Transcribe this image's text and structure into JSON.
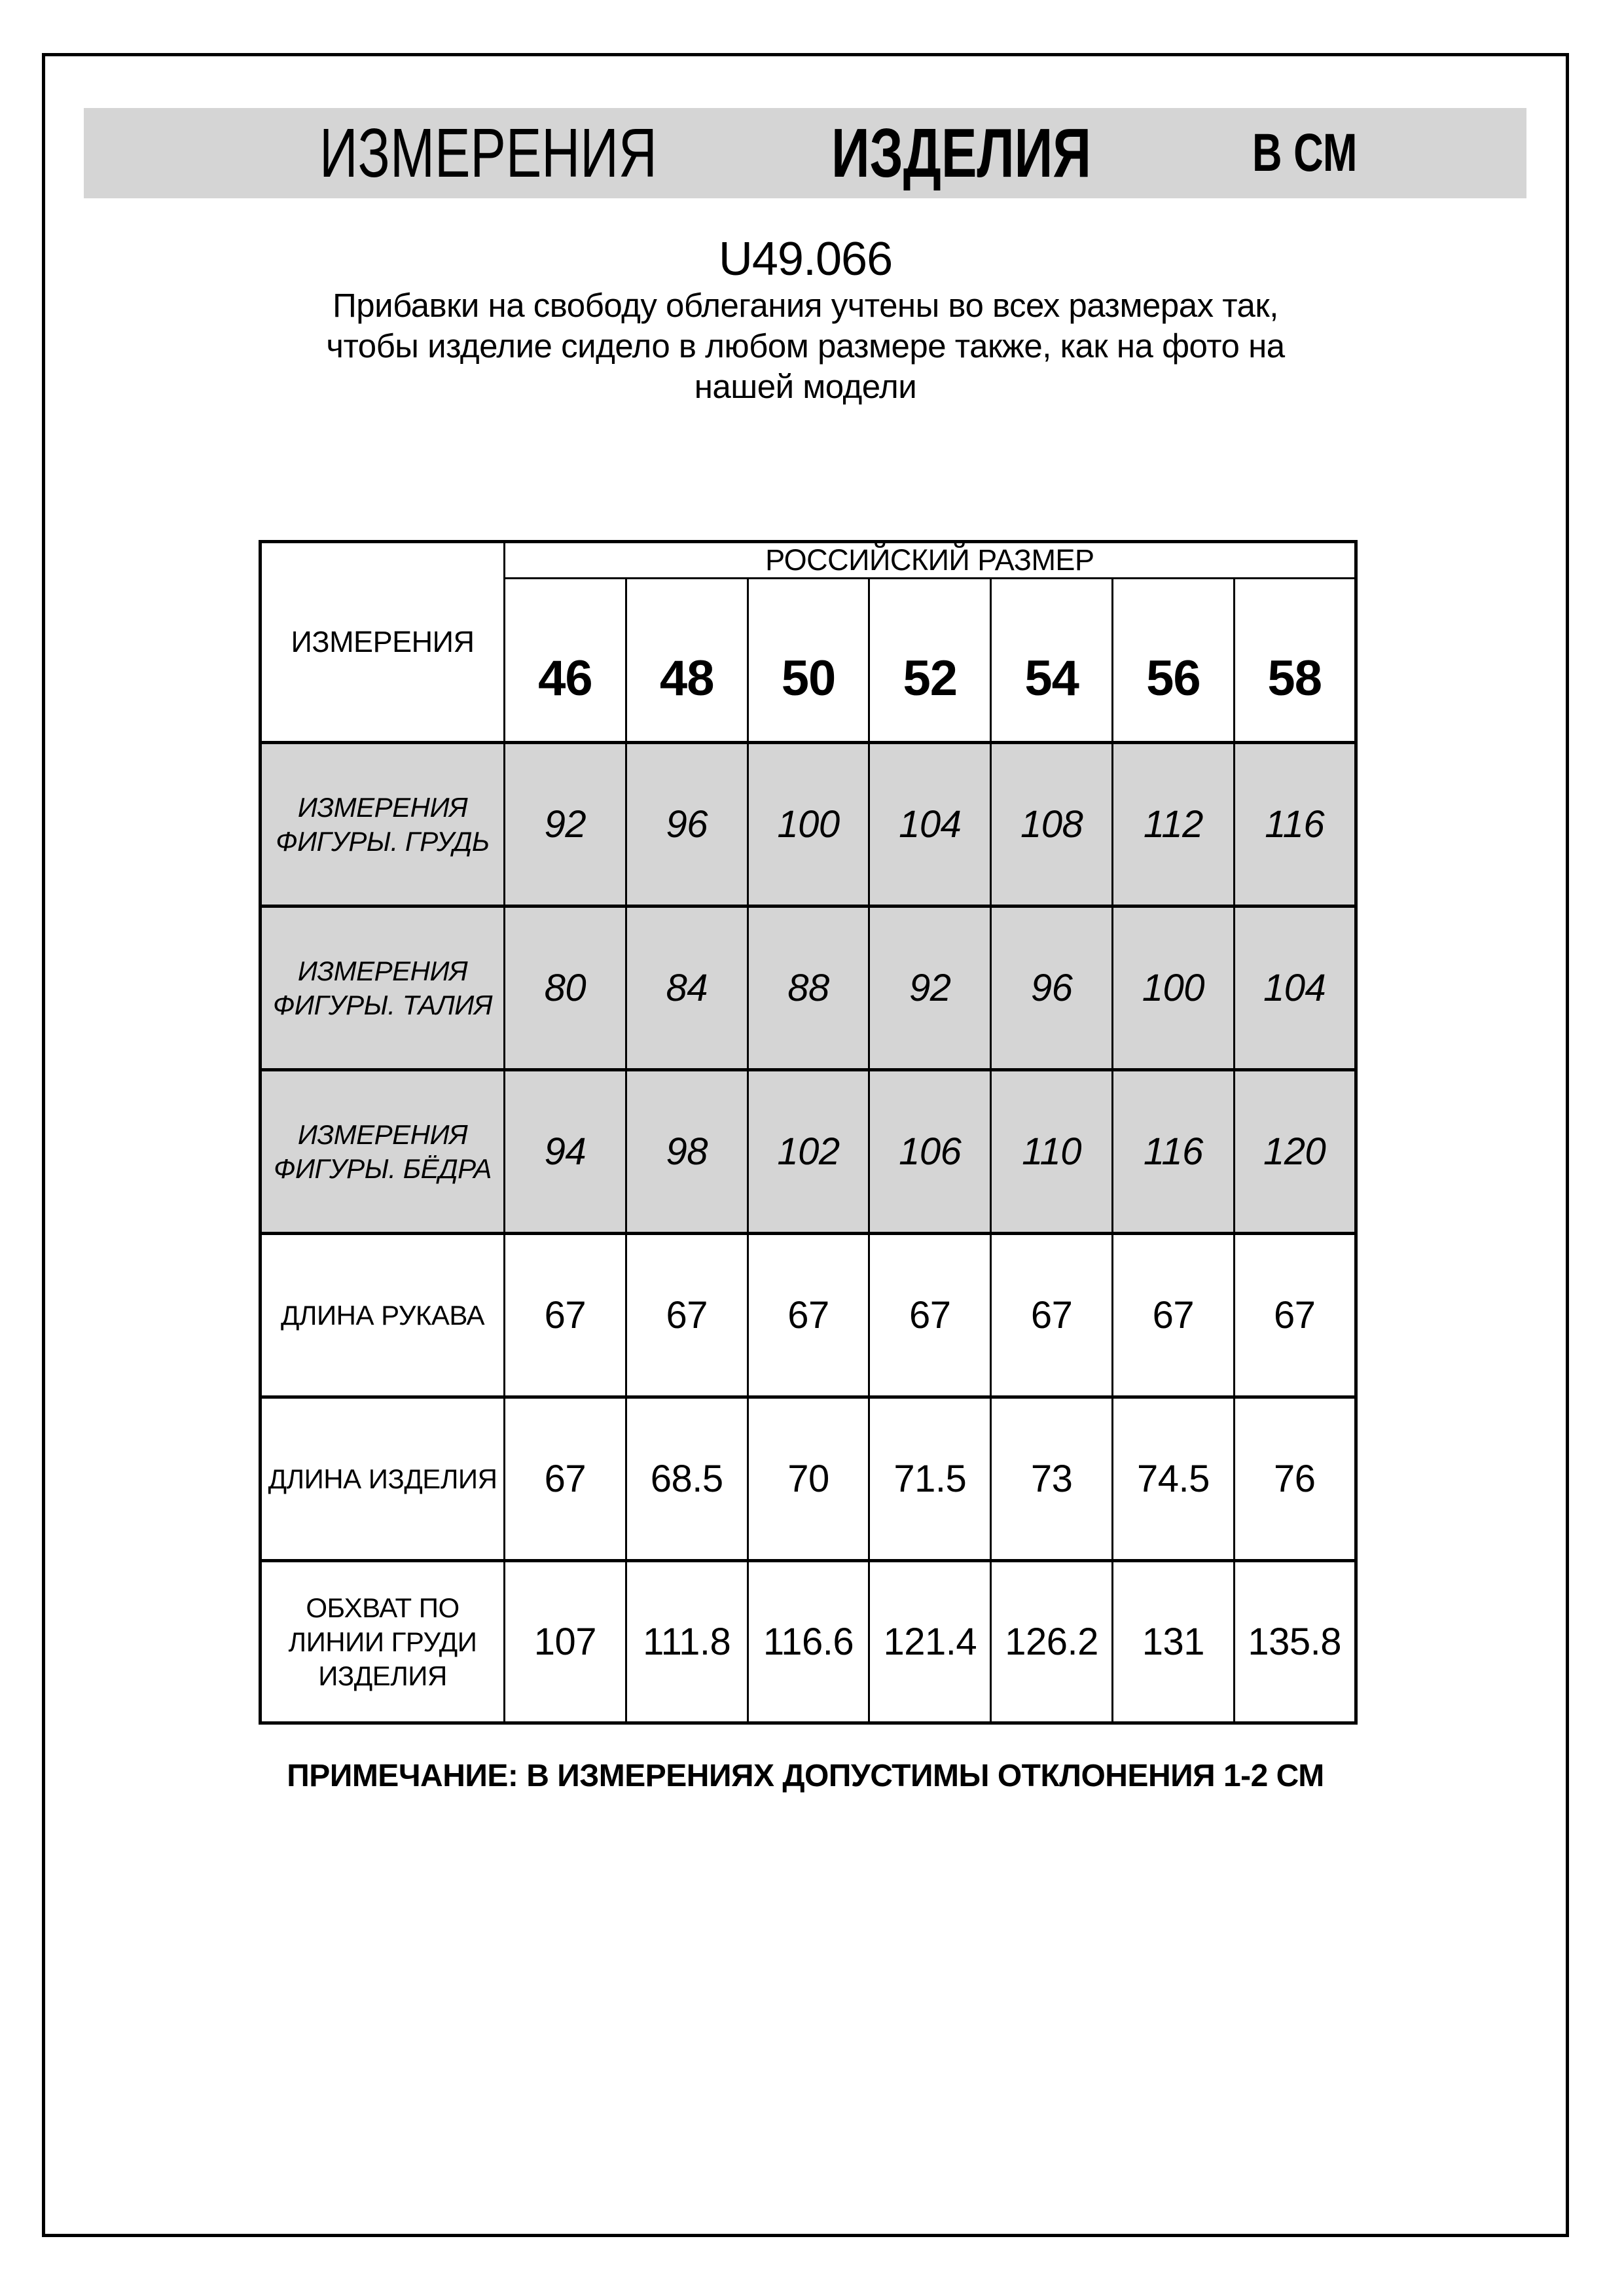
{
  "header": {
    "title_measurements": "ИЗМЕРЕНИЯ",
    "title_product": "ИЗДЕЛИЯ",
    "title_units": "В СМ"
  },
  "product": {
    "code": "U49.066",
    "description_lines": [
      "Прибавки на свободу облегания учтены во всех размерах так,",
      "чтобы изделие сидело в любом размере также, как на фото на",
      "нашей модели"
    ]
  },
  "table": {
    "corner_label": "ИЗМЕРЕНИЯ",
    "size_group_label": "РОССИЙСКИЙ РАЗМЕР",
    "sizes": [
      "46",
      "48",
      "50",
      "52",
      "54",
      "56",
      "58"
    ],
    "rows": [
      {
        "label": "ИЗМЕРЕНИЯ ФИГУРЫ. ГРУДЬ",
        "label_lines": [
          "ИЗМЕРЕНИЯ",
          "ФИГУРЫ. ГРУДЬ"
        ],
        "shaded": true,
        "values": [
          "92",
          "96",
          "100",
          "104",
          "108",
          "112",
          "116"
        ]
      },
      {
        "label": "ИЗМЕРЕНИЯ ФИГУРЫ. ТАЛИЯ",
        "label_lines": [
          "ИЗМЕРЕНИЯ",
          "ФИГУРЫ. ТАЛИЯ"
        ],
        "shaded": true,
        "values": [
          "80",
          "84",
          "88",
          "92",
          "96",
          "100",
          "104"
        ]
      },
      {
        "label": "ИЗМЕРЕНИЯ ФИГУРЫ. БЁДРА",
        "label_lines": [
          "ИЗМЕРЕНИЯ",
          "ФИГУРЫ. БЁДРА"
        ],
        "shaded": true,
        "values": [
          "94",
          "98",
          "102",
          "106",
          "110",
          "116",
          "120"
        ]
      },
      {
        "label": "ДЛИНА РУКАВА",
        "label_lines": [
          "ДЛИНА РУКАВА"
        ],
        "shaded": false,
        "values": [
          "67",
          "67",
          "67",
          "67",
          "67",
          "67",
          "67"
        ]
      },
      {
        "label": "ДЛИНА ИЗДЕЛИЯ",
        "label_lines": [
          "ДЛИНА ИЗДЕЛИЯ"
        ],
        "shaded": false,
        "values": [
          "67",
          "68.5",
          "70",
          "71.5",
          "73",
          "74.5",
          "76"
        ]
      },
      {
        "label": "ОБХВАТ ПО ЛИНИИ ГРУДИ ИЗДЕЛИЯ",
        "label_lines": [
          "ОБХВАТ ПО",
          "ЛИНИИ ГРУДИ",
          "ИЗДЕЛИЯ"
        ],
        "shaded": false,
        "values": [
          "107",
          "111.8",
          "116.6",
          "121.4",
          "126.2",
          "131",
          "135.8"
        ]
      }
    ]
  },
  "note": "ПРИМЕЧАНИЕ: В ИЗМЕРЕНИЯХ ДОПУСТИМЫ ОТКЛОНЕНИЯ 1-2 СМ",
  "colors": {
    "shaded_fill": "#d5d5d5",
    "border": "#000000",
    "text": "#000000",
    "background": "#ffffff"
  }
}
